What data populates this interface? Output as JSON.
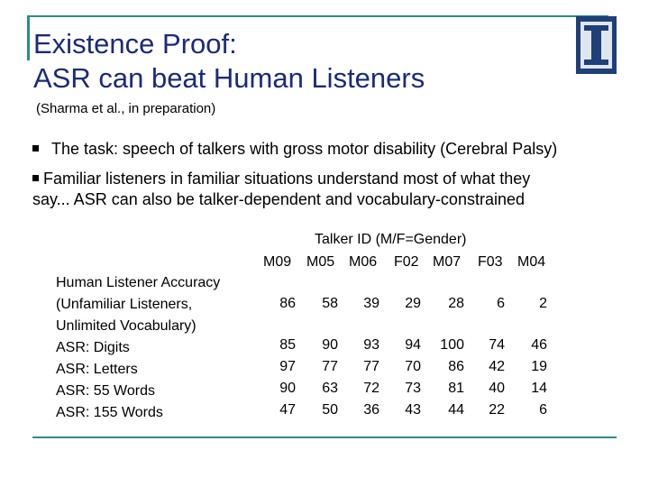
{
  "slide": {
    "title_line1": "Existence Proof:",
    "title_line2": "ASR can beat Human Listeners",
    "subtitle": "(Sharma et al., in preparation)",
    "bullet1": "The task: speech of talkers with gross motor disability (Cerebral Palsy)",
    "bullet2_line1": "Familiar listeners in familiar situations understand most of what they",
    "bullet2_line2": "say... ASR can also be talker-dependent and vocabulary-constrained",
    "logo_icon": "illinois-i-logo-icon",
    "accent_color": "#2e8b8b",
    "title_color": "#1b2a7a"
  },
  "table": {
    "title": "Talker ID (M/F=Gender)",
    "columns": [
      "M09",
      "M05",
      "M06",
      "F02",
      "M07",
      "F03",
      "M04"
    ],
    "rows": [
      {
        "label_lines": [
          "Human Listener Accuracy",
          "(Unfamiliar Listeners,",
          "Unlimited Vocabulary)"
        ],
        "values": [
          "86",
          "58",
          "39",
          "29",
          "28",
          "6",
          "2"
        ]
      },
      {
        "label_lines": [
          "ASR: Digits"
        ],
        "values": [
          "85",
          "90",
          "93",
          "94",
          "100",
          "74",
          "46"
        ]
      },
      {
        "label_lines": [
          "ASR: Letters"
        ],
        "values": [
          "97",
          "77",
          "77",
          "70",
          "86",
          "42",
          "19"
        ]
      },
      {
        "label_lines": [
          "ASR: 55 Words"
        ],
        "values": [
          "90",
          "63",
          "72",
          "73",
          "81",
          "40",
          "14"
        ]
      },
      {
        "label_lines": [
          "ASR: 155 Words"
        ],
        "values": [
          "47",
          "50",
          "36",
          "43",
          "44",
          "22",
          "6"
        ]
      }
    ]
  }
}
